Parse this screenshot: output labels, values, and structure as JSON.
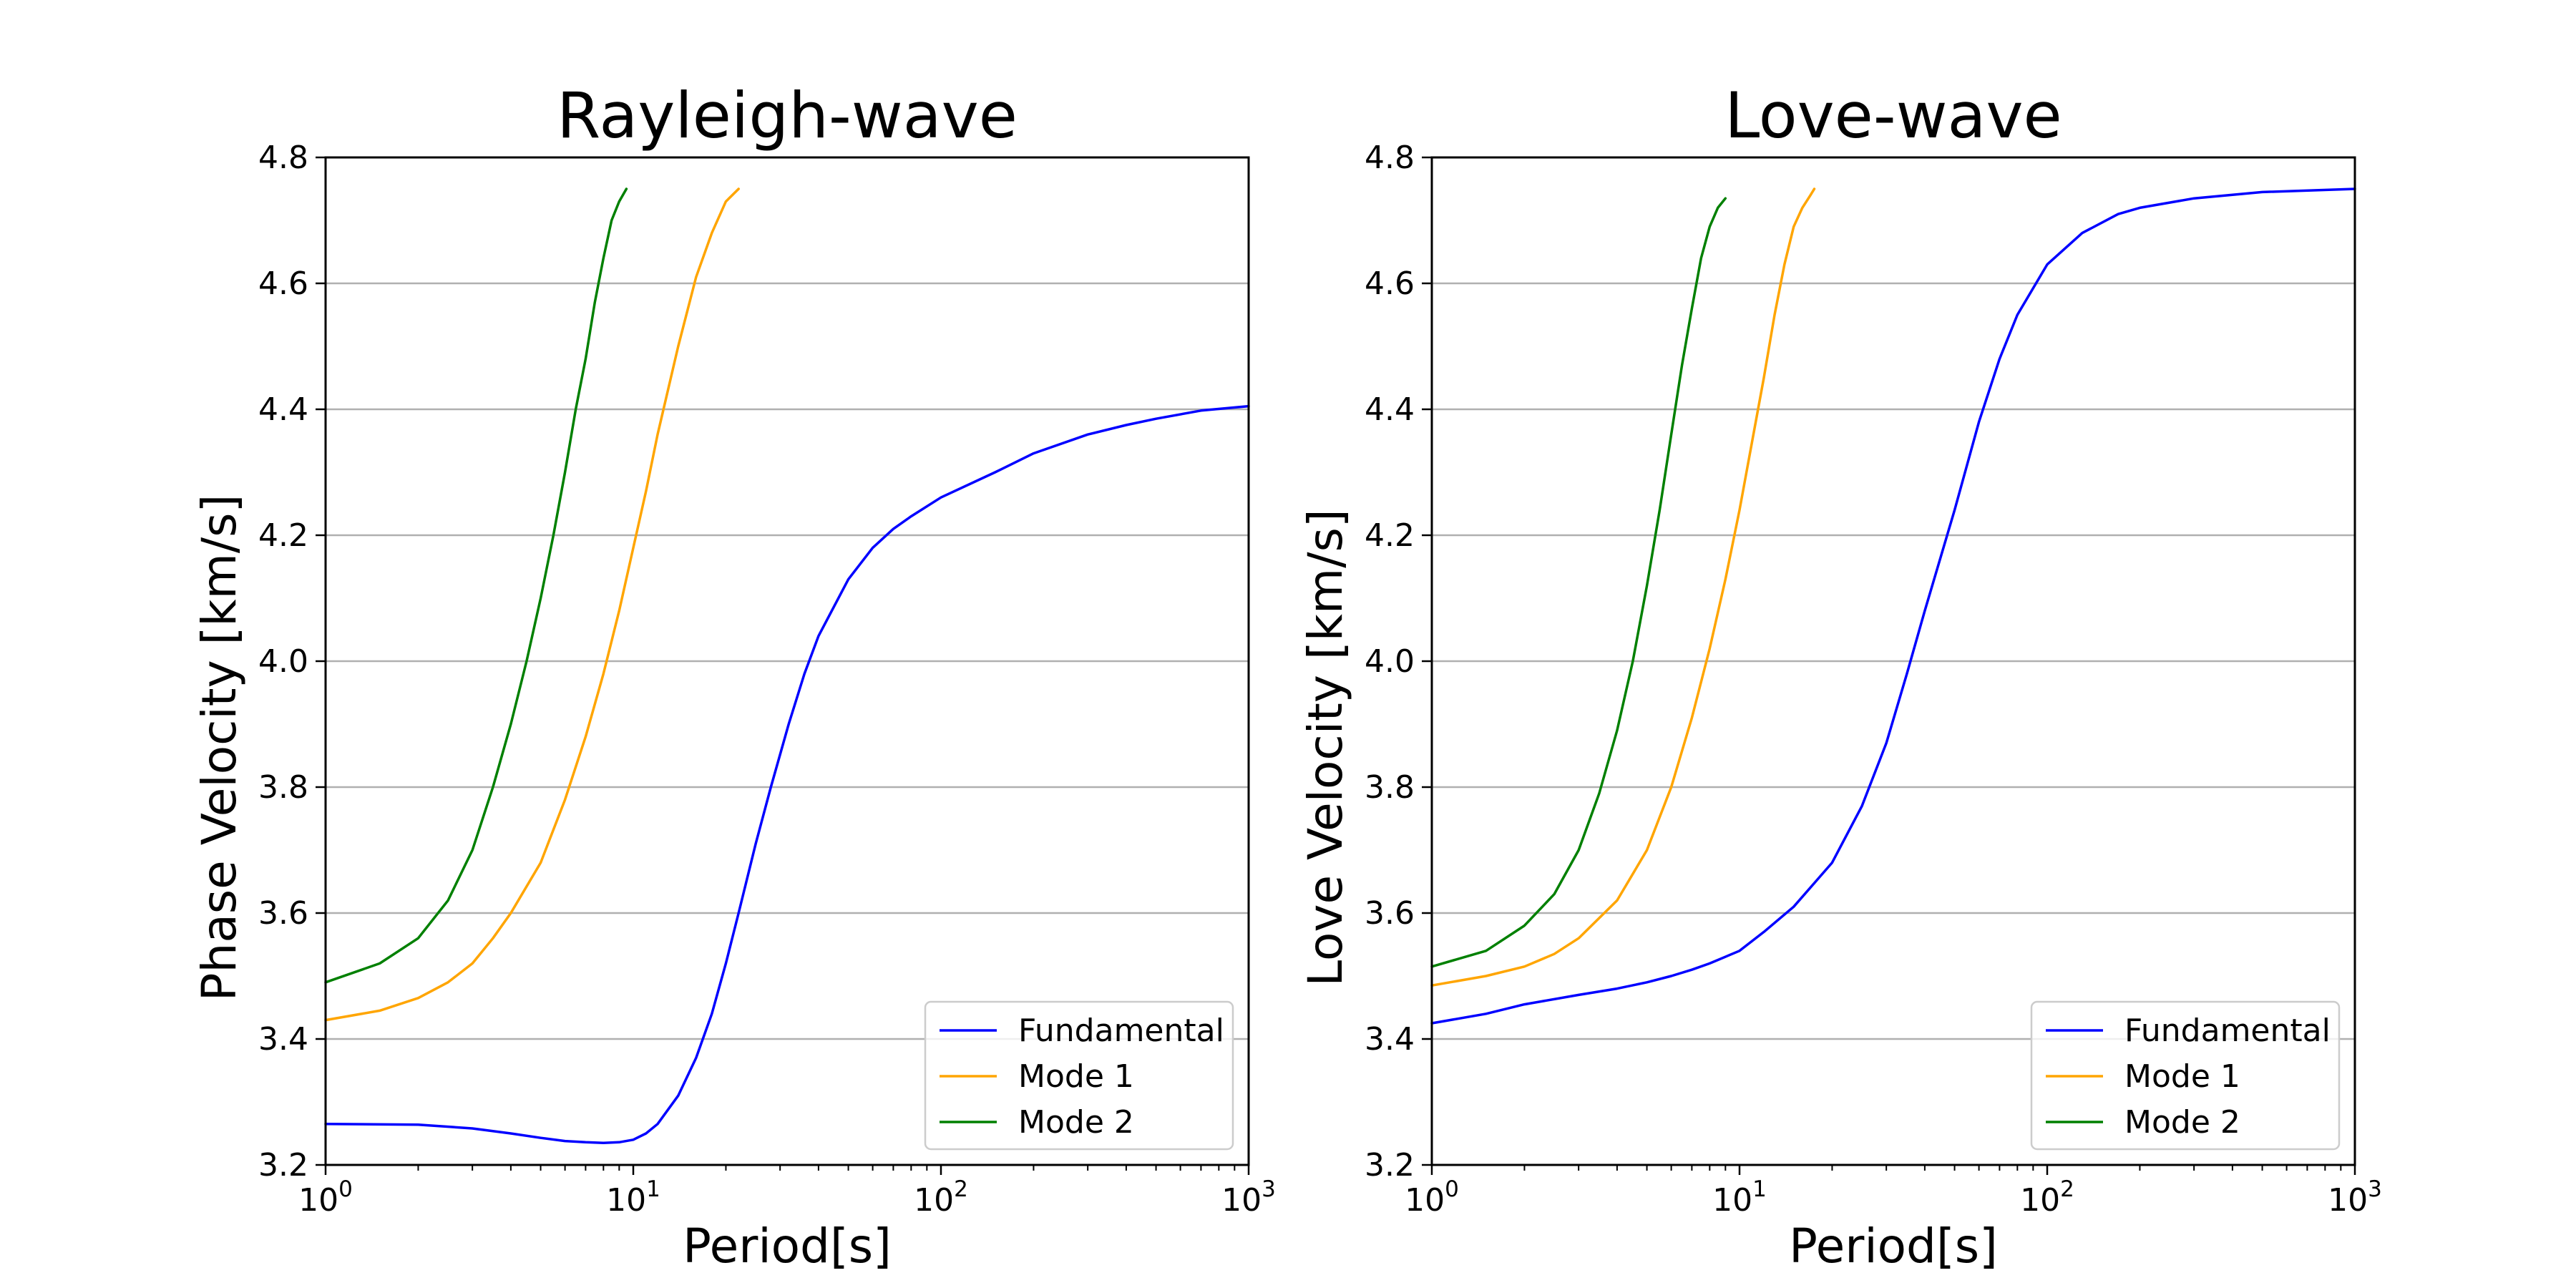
{
  "chart_data": [
    {
      "type": "line",
      "title": "Rayleigh-wave",
      "xlabel": "Period[s]",
      "ylabel": "Phase Velocity [km/s]",
      "xscale": "log",
      "xlim": [
        1,
        1000
      ],
      "ylim": [
        3.2,
        4.8
      ],
      "x_ticks": [
        {
          "base": "10",
          "exp": "0"
        },
        {
          "base": "10",
          "exp": "1"
        },
        {
          "base": "10",
          "exp": "2"
        },
        {
          "base": "10",
          "exp": "3"
        }
      ],
      "y_ticks": [
        "3.2",
        "3.4",
        "3.6",
        "3.8",
        "4.0",
        "4.2",
        "4.4",
        "4.6",
        "4.8"
      ],
      "grid": "horizontal",
      "legend": "lower-right",
      "series": [
        {
          "name": "Fundamental",
          "color": "#0000ff",
          "points": [
            [
              1,
              3.265
            ],
            [
              2,
              3.264
            ],
            [
              3,
              3.258
            ],
            [
              4,
              3.25
            ],
            [
              5,
              3.243
            ],
            [
              6,
              3.238
            ],
            [
              7,
              3.236
            ],
            [
              8,
              3.235
            ],
            [
              9,
              3.236
            ],
            [
              10,
              3.24
            ],
            [
              11,
              3.25
            ],
            [
              12,
              3.265
            ],
            [
              14,
              3.31
            ],
            [
              16,
              3.37
            ],
            [
              18,
              3.44
            ],
            [
              20,
              3.52
            ],
            [
              22,
              3.6
            ],
            [
              25,
              3.71
            ],
            [
              28,
              3.8
            ],
            [
              32,
              3.9
            ],
            [
              36,
              3.98
            ],
            [
              40,
              4.04
            ],
            [
              50,
              4.13
            ],
            [
              60,
              4.18
            ],
            [
              70,
              4.21
            ],
            [
              80,
              4.23
            ],
            [
              100,
              4.26
            ],
            [
              150,
              4.3
            ],
            [
              200,
              4.33
            ],
            [
              300,
              4.36
            ],
            [
              400,
              4.375
            ],
            [
              500,
              4.385
            ],
            [
              700,
              4.398
            ],
            [
              1000,
              4.405
            ]
          ]
        },
        {
          "name": "Mode 1",
          "color": "#ffa500",
          "points": [
            [
              1,
              3.43
            ],
            [
              1.5,
              3.445
            ],
            [
              2,
              3.465
            ],
            [
              2.5,
              3.49
            ],
            [
              3,
              3.52
            ],
            [
              3.5,
              3.56
            ],
            [
              4,
              3.6
            ],
            [
              5,
              3.68
            ],
            [
              6,
              3.78
            ],
            [
              7,
              3.88
            ],
            [
              8,
              3.98
            ],
            [
              9,
              4.08
            ],
            [
              10,
              4.18
            ],
            [
              11,
              4.27
            ],
            [
              12,
              4.36
            ],
            [
              14,
              4.5
            ],
            [
              16,
              4.61
            ],
            [
              18,
              4.68
            ],
            [
              20,
              4.73
            ],
            [
              22,
              4.75
            ]
          ]
        },
        {
          "name": "Mode 2",
          "color": "#008000",
          "points": [
            [
              1,
              3.49
            ],
            [
              1.5,
              3.52
            ],
            [
              2,
              3.56
            ],
            [
              2.5,
              3.62
            ],
            [
              3,
              3.7
            ],
            [
              3.5,
              3.8
            ],
            [
              4,
              3.9
            ],
            [
              4.5,
              4.0
            ],
            [
              5,
              4.1
            ],
            [
              5.5,
              4.2
            ],
            [
              6,
              4.3
            ],
            [
              6.5,
              4.4
            ],
            [
              7,
              4.48
            ],
            [
              7.5,
              4.57
            ],
            [
              8,
              4.64
            ],
            [
              8.5,
              4.7
            ],
            [
              9,
              4.73
            ],
            [
              9.5,
              4.75
            ]
          ]
        }
      ]
    },
    {
      "type": "line",
      "title": "Love-wave",
      "xlabel": "Period[s]",
      "ylabel": "Love Velocity [km/s]",
      "xscale": "log",
      "xlim": [
        1,
        1000
      ],
      "ylim": [
        3.2,
        4.8
      ],
      "x_ticks": [
        {
          "base": "10",
          "exp": "0"
        },
        {
          "base": "10",
          "exp": "1"
        },
        {
          "base": "10",
          "exp": "2"
        },
        {
          "base": "10",
          "exp": "3"
        }
      ],
      "y_ticks": [
        "3.2",
        "3.4",
        "3.6",
        "3.8",
        "4.0",
        "4.2",
        "4.4",
        "4.6",
        "4.8"
      ],
      "grid": "horizontal",
      "legend": "lower-right",
      "series": [
        {
          "name": "Fundamental",
          "color": "#0000ff",
          "points": [
            [
              1,
              3.425
            ],
            [
              1.5,
              3.44
            ],
            [
              2,
              3.455
            ],
            [
              3,
              3.47
            ],
            [
              4,
              3.48
            ],
            [
              5,
              3.49
            ],
            [
              6,
              3.5
            ],
            [
              7,
              3.51
            ],
            [
              8,
              3.52
            ],
            [
              10,
              3.54
            ],
            [
              12,
              3.57
            ],
            [
              15,
              3.61
            ],
            [
              20,
              3.68
            ],
            [
              25,
              3.77
            ],
            [
              30,
              3.87
            ],
            [
              35,
              3.98
            ],
            [
              40,
              4.08
            ],
            [
              50,
              4.24
            ],
            [
              60,
              4.38
            ],
            [
              70,
              4.48
            ],
            [
              80,
              4.55
            ],
            [
              100,
              4.63
            ],
            [
              130,
              4.68
            ],
            [
              170,
              4.71
            ],
            [
              200,
              4.72
            ],
            [
              300,
              4.735
            ],
            [
              500,
              4.745
            ],
            [
              1000,
              4.75
            ]
          ]
        },
        {
          "name": "Mode 1",
          "color": "#ffa500",
          "points": [
            [
              1,
              3.485
            ],
            [
              1.5,
              3.5
            ],
            [
              2,
              3.515
            ],
            [
              2.5,
              3.535
            ],
            [
              3,
              3.56
            ],
            [
              4,
              3.62
            ],
            [
              5,
              3.7
            ],
            [
              6,
              3.8
            ],
            [
              7,
              3.91
            ],
            [
              8,
              4.02
            ],
            [
              9,
              4.13
            ],
            [
              10,
              4.24
            ],
            [
              11,
              4.35
            ],
            [
              12,
              4.45
            ],
            [
              13,
              4.55
            ],
            [
              14,
              4.63
            ],
            [
              15,
              4.69
            ],
            [
              16,
              4.72
            ],
            [
              17,
              4.74
            ],
            [
              17.5,
              4.75
            ]
          ]
        },
        {
          "name": "Mode 2",
          "color": "#008000",
          "points": [
            [
              1,
              3.515
            ],
            [
              1.5,
              3.54
            ],
            [
              2,
              3.58
            ],
            [
              2.5,
              3.63
            ],
            [
              3,
              3.7
            ],
            [
              3.5,
              3.79
            ],
            [
              4,
              3.89
            ],
            [
              4.5,
              4.0
            ],
            [
              5,
              4.12
            ],
            [
              5.5,
              4.24
            ],
            [
              6,
              4.36
            ],
            [
              6.5,
              4.47
            ],
            [
              7,
              4.56
            ],
            [
              7.5,
              4.64
            ],
            [
              8,
              4.69
            ],
            [
              8.5,
              4.72
            ],
            [
              9,
              4.735
            ]
          ]
        }
      ]
    }
  ]
}
